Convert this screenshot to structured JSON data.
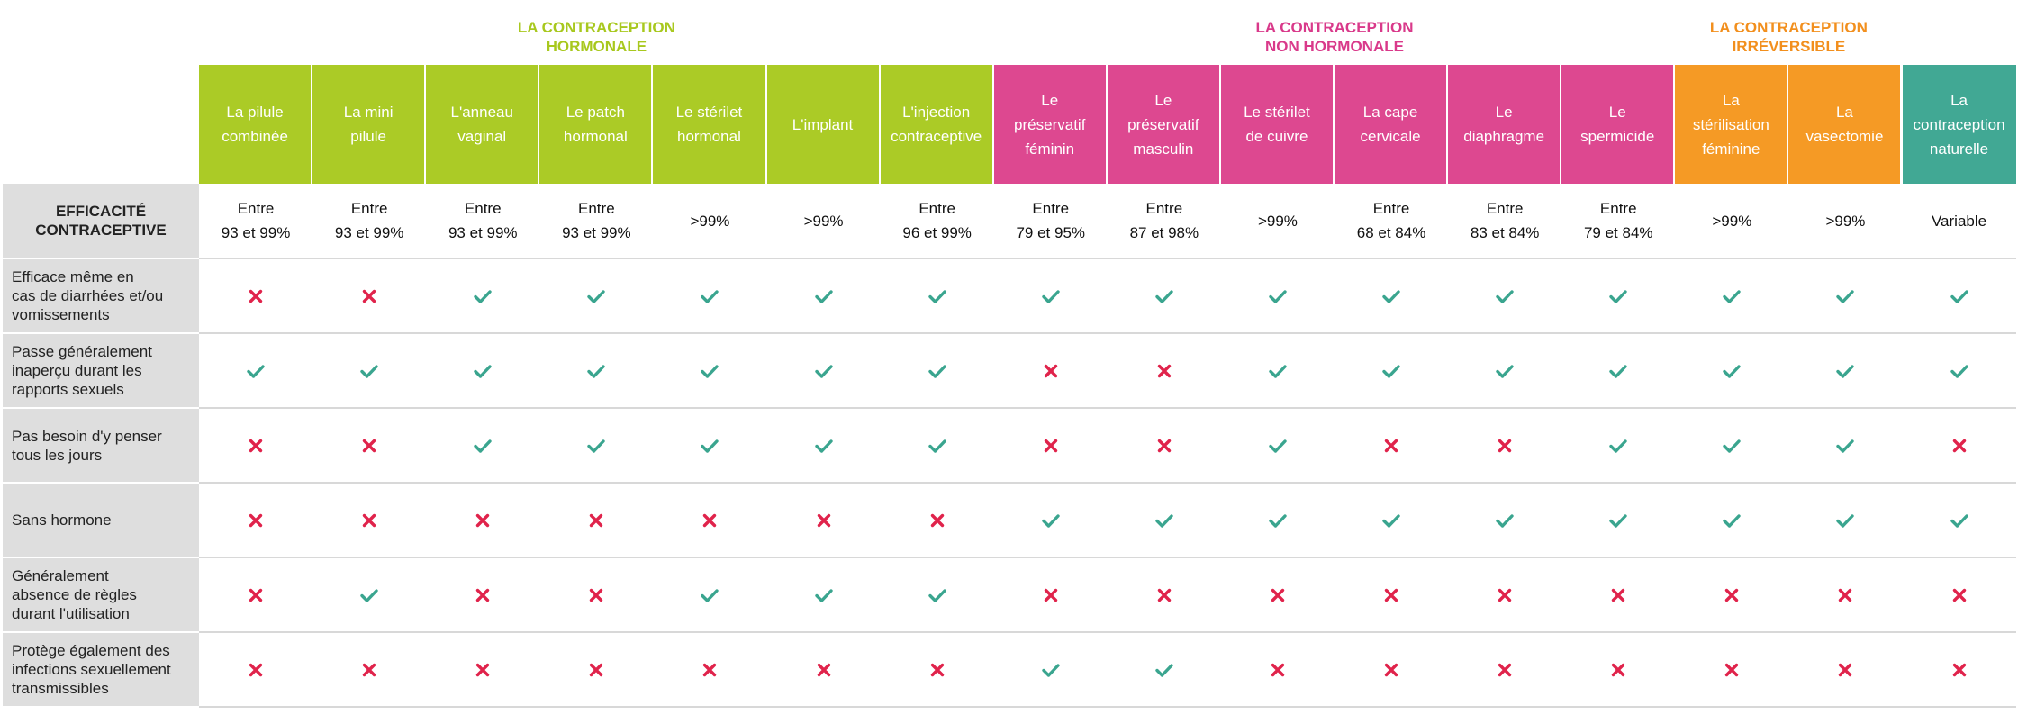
{
  "groups": [
    {
      "label": "LA CONTRACEPTION\nHORMONALE",
      "color": "#a8c81e",
      "start": 0,
      "span": 7
    },
    {
      "label": "LA CONTRACEPTION\nNON HORMONALE",
      "color": "#d9398a",
      "start": 7,
      "span": 6
    },
    {
      "label": "LA CONTRACEPTION\nIRRÉVERSIBLE",
      "color": "#f28f1d",
      "start": 13,
      "span": 2
    }
  ],
  "columns": [
    {
      "label": "La pilule\ncombinée",
      "color": "#abcb26"
    },
    {
      "label": "La mini\npilule",
      "color": "#abcb26"
    },
    {
      "label": "L'anneau\nvaginal",
      "color": "#abcb26"
    },
    {
      "label": "Le patch\nhormonal",
      "color": "#abcb26"
    },
    {
      "label": "Le stérilet\nhormonal",
      "color": "#abcb26"
    },
    {
      "label": "L'implant",
      "color": "#abcb26"
    },
    {
      "label": "L'injection\ncontraceptive",
      "color": "#abcb26"
    },
    {
      "label": "Le\npréservatif\nféminin",
      "color": "#dd4890"
    },
    {
      "label": "Le\npréservatif\nmasculin",
      "color": "#dd4890"
    },
    {
      "label": "Le stérilet\nde cuivre",
      "color": "#dd4890"
    },
    {
      "label": "La cape\ncervicale",
      "color": "#dd4890"
    },
    {
      "label": "Le\ndiaphragme",
      "color": "#dd4890"
    },
    {
      "label": "Le\nspermicide",
      "color": "#dd4890"
    },
    {
      "label": "La\nstérilisation\nféminine",
      "color": "#f59a25"
    },
    {
      "label": "La\nvasectomie",
      "color": "#f59a25"
    },
    {
      "label": "La\ncontraception\nnaturelle",
      "color": "#41a894"
    }
  ],
  "efficacy": {
    "label": "EFFICACITÉ\nCONTRACEPTIVE",
    "values": [
      "Entre\n93 et 99%",
      "Entre\n93 et 99%",
      "Entre\n93 et 99%",
      "Entre\n93 et 99%",
      ">99%",
      ">99%",
      "Entre\n96 et 99%",
      "Entre\n79 et 95%",
      "Entre\n87 et 98%",
      ">99%",
      "Entre\n68 et 84%",
      "Entre\n83 et 84%",
      "Entre\n79 et 84%",
      ">99%",
      ">99%",
      "Variable"
    ]
  },
  "criteria": [
    {
      "label": "Efficace même en\ncas de diarrhées et/ou\nvomissements",
      "values": [
        0,
        0,
        1,
        1,
        1,
        1,
        1,
        1,
        1,
        1,
        1,
        1,
        1,
        1,
        1,
        1
      ]
    },
    {
      "label": "Passe généralement\ninaperçu durant les\nrapports sexuels",
      "values": [
        1,
        1,
        1,
        1,
        1,
        1,
        1,
        0,
        0,
        1,
        1,
        1,
        1,
        1,
        1,
        1
      ]
    },
    {
      "label": "Pas besoin d'y penser\ntous les jours",
      "values": [
        0,
        0,
        1,
        1,
        1,
        1,
        1,
        0,
        0,
        1,
        0,
        0,
        1,
        1,
        1,
        0
      ]
    },
    {
      "label": "Sans hormone",
      "values": [
        0,
        0,
        0,
        0,
        0,
        0,
        0,
        1,
        1,
        1,
        1,
        1,
        1,
        1,
        1,
        1
      ]
    },
    {
      "label": "Généralement\nabsence de règles\ndurant l'utilisation",
      "values": [
        0,
        1,
        0,
        0,
        1,
        1,
        1,
        0,
        0,
        0,
        0,
        0,
        0,
        0,
        0,
        0
      ]
    },
    {
      "label": "Protège également des\ninfections sexuellement\ntransmissibles",
      "values": [
        0,
        0,
        0,
        0,
        0,
        0,
        0,
        1,
        1,
        0,
        0,
        0,
        0,
        0,
        0,
        0
      ]
    }
  ],
  "icons": {
    "yes": "check-icon",
    "no": "cross-icon",
    "yes_color": "#3aa58f",
    "no_color": "#e0234b"
  }
}
